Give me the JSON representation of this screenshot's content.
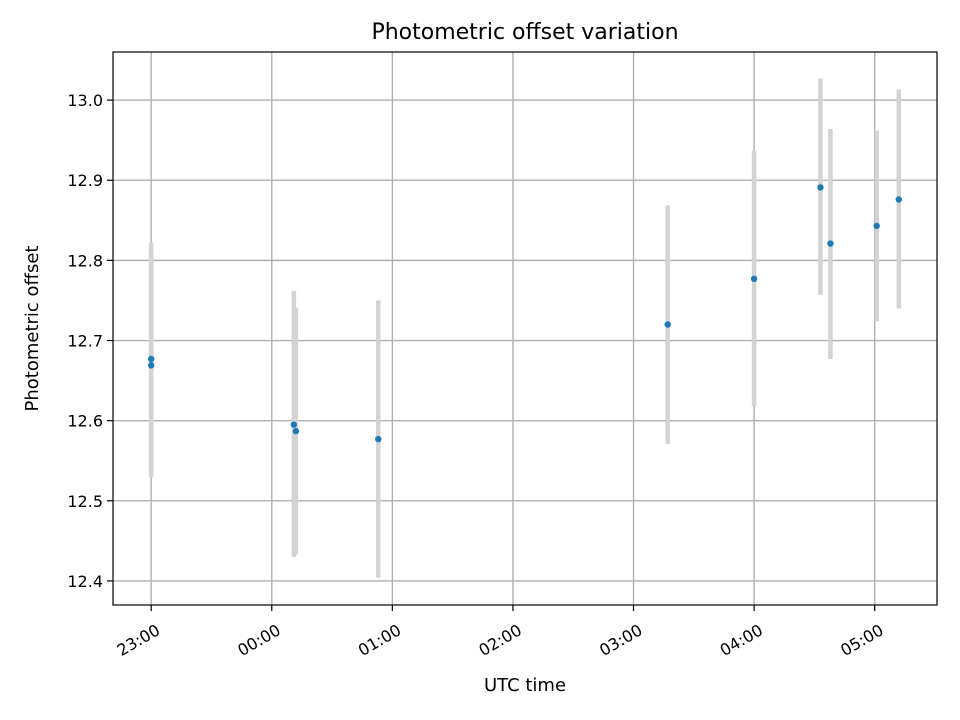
{
  "chart_data": {
    "type": "scatter",
    "title": "Photometric offset variation",
    "xlabel": "UTC time",
    "ylabel": "Photometric offset",
    "x_unit": "UTC",
    "xlim": [
      "22:41",
      "05:31"
    ],
    "ylim": [
      12.37,
      13.06
    ],
    "x_ticks": [
      "23:00",
      "00:00",
      "01:00",
      "02:00",
      "03:00",
      "04:00",
      "05:00"
    ],
    "y_ticks": [
      "12.4",
      "12.5",
      "12.6",
      "12.7",
      "12.8",
      "12.9",
      "13.0"
    ],
    "grid": true,
    "legend": "none",
    "points": [
      {
        "x": "23:00",
        "y": 12.677,
        "err_low": 12.535,
        "err_high": 12.822
      },
      {
        "x": "23:00",
        "y": 12.669,
        "err_low": 12.53,
        "err_high": 12.808
      },
      {
        "x": "00:11",
        "y": 12.595,
        "err_low": 12.43,
        "err_high": 12.762
      },
      {
        "x": "00:12",
        "y": 12.587,
        "err_low": 12.433,
        "err_high": 12.741
      },
      {
        "x": "00:53",
        "y": 12.577,
        "err_low": 12.404,
        "err_high": 12.75
      },
      {
        "x": "03:17",
        "y": 12.72,
        "err_low": 12.571,
        "err_high": 12.869
      },
      {
        "x": "04:00",
        "y": 12.777,
        "err_low": 12.618,
        "err_high": 12.937
      },
      {
        "x": "04:33",
        "y": 12.891,
        "err_low": 12.757,
        "err_high": 13.027
      },
      {
        "x": "04:38",
        "y": 12.821,
        "err_low": 12.677,
        "err_high": 12.964
      },
      {
        "x": "05:01",
        "y": 12.843,
        "err_low": 12.724,
        "err_high": 12.962
      },
      {
        "x": "05:12",
        "y": 12.876,
        "err_low": 12.74,
        "err_high": 13.013
      }
    ],
    "colors": {
      "marker": "#1f77b4",
      "errorbar": "#d3d3d3",
      "grid": "#b0b0b0",
      "axes": "#000000"
    }
  }
}
